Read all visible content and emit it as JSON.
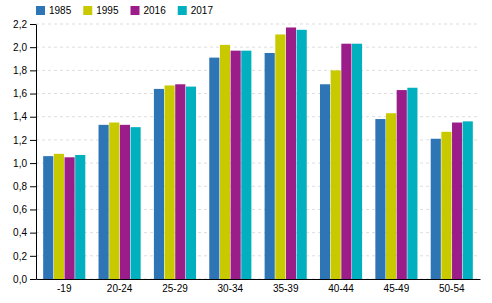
{
  "chart_data": {
    "type": "bar",
    "categories": [
      "-19",
      "20-24",
      "25-29",
      "30-34",
      "35-39",
      "40-44",
      "45-49",
      "50-54"
    ],
    "series": [
      {
        "name": "1985",
        "color": "#2E75B6",
        "values": [
          1.06,
          1.33,
          1.64,
          1.91,
          1.95,
          1.68,
          1.38,
          1.21
        ]
      },
      {
        "name": "1995",
        "color": "#C9C900",
        "values": [
          1.08,
          1.35,
          1.67,
          2.02,
          2.11,
          1.8,
          1.43,
          1.27
        ]
      },
      {
        "name": "2016",
        "color": "#9B1D8A",
        "values": [
          1.05,
          1.33,
          1.68,
          1.97,
          2.17,
          2.03,
          1.63,
          1.35
        ]
      },
      {
        "name": "2017",
        "color": "#00B0BF",
        "values": [
          1.07,
          1.31,
          1.66,
          1.97,
          2.15,
          2.03,
          1.65,
          1.36
        ]
      }
    ],
    "ylim": [
      0.0,
      2.2
    ],
    "yticks": [
      {
        "value": 0.0,
        "label": "0,0"
      },
      {
        "value": 0.2,
        "label": "0,2"
      },
      {
        "value": 0.4,
        "label": "0,4"
      },
      {
        "value": 0.6,
        "label": "0,6"
      },
      {
        "value": 0.8,
        "label": "0,8"
      },
      {
        "value": 1.0,
        "label": "1,0"
      },
      {
        "value": 1.2,
        "label": "1,2"
      },
      {
        "value": 1.4,
        "label": "1,4"
      },
      {
        "value": 1.6,
        "label": "1,6"
      },
      {
        "value": 1.8,
        "label": "1,8"
      },
      {
        "value": 2.0,
        "label": "2,0"
      },
      {
        "value": 2.2,
        "label": "2,2"
      }
    ],
    "grid": true,
    "legend": "upper-left"
  }
}
